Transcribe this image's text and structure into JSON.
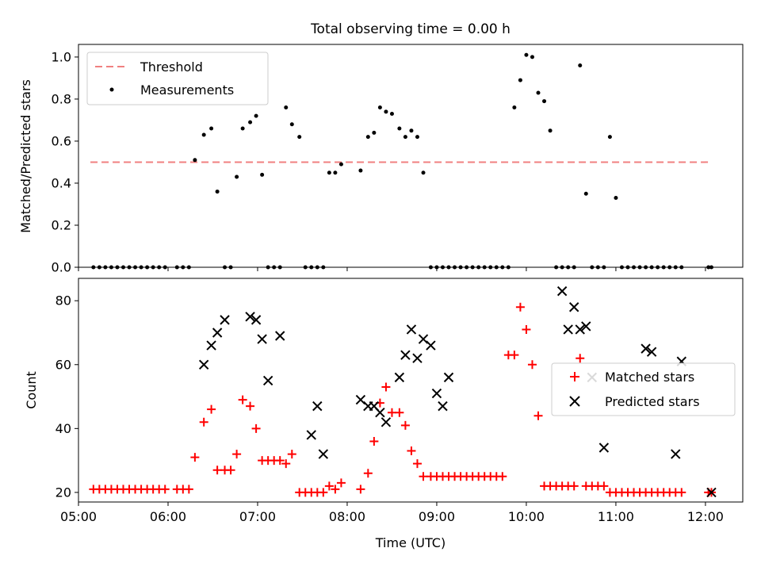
{
  "figure_title": "Total observing time = 0.00 h",
  "chart_data": [
    {
      "type": "scatter",
      "ylabel": "Matched/Predicted stars",
      "xlim": [
        "05:00",
        "12:25"
      ],
      "ylim": [
        0,
        1.06
      ],
      "yticks": [
        "0.0",
        "0.2",
        "0.4",
        "0.6",
        "0.8",
        "1.0"
      ],
      "grid": false,
      "legend_position": "top-left",
      "threshold": {
        "name": "Threshold",
        "value": 0.5,
        "x_start": "05:08",
        "x_end": "12:02",
        "color": "#f08080"
      },
      "series": [
        {
          "name": "Measurements",
          "color": "#000000",
          "x": [
            "05:10",
            "05:14",
            "05:18",
            "05:22",
            "05:26",
            "05:30",
            "05:34",
            "05:38",
            "05:42",
            "05:46",
            "05:50",
            "05:54",
            "05:58",
            "06:06",
            "06:10",
            "06:14",
            "06:18",
            "06:24",
            "06:29",
            "06:33",
            "06:38",
            "06:42",
            "06:46",
            "06:50",
            "06:55",
            "06:59",
            "07:03",
            "07:07",
            "07:11",
            "07:15",
            "07:19",
            "07:23",
            "07:28",
            "07:32",
            "07:36",
            "07:40",
            "07:44",
            "07:48",
            "07:52",
            "07:56",
            "08:09",
            "08:14",
            "08:18",
            "08:22",
            "08:26",
            "08:30",
            "08:35",
            "08:39",
            "08:43",
            "08:47",
            "08:51",
            "08:56",
            "09:00",
            "09:04",
            "09:08",
            "09:12",
            "09:16",
            "09:20",
            "09:24",
            "09:28",
            "09:32",
            "09:36",
            "09:40",
            "09:44",
            "09:48",
            "09:52",
            "09:56",
            "10:00",
            "10:04",
            "10:08",
            "10:12",
            "10:16",
            "10:20",
            "10:24",
            "10:28",
            "10:32",
            "10:36",
            "10:40",
            "10:44",
            "10:48",
            "10:52",
            "10:56",
            "11:00",
            "11:04",
            "11:08",
            "11:12",
            "11:16",
            "11:20",
            "11:24",
            "11:28",
            "11:32",
            "11:36",
            "11:40",
            "11:44",
            "12:02",
            "12:04"
          ],
          "y": [
            0,
            0,
            0,
            0,
            0,
            0,
            0,
            0,
            0,
            0,
            0,
            0,
            0,
            0,
            0,
            0,
            0.51,
            0.63,
            0.66,
            0.36,
            0,
            0,
            0.43,
            0.66,
            0.69,
            0.72,
            0.44,
            0,
            0,
            0,
            0.76,
            0.68,
            0.62,
            0,
            0,
            0,
            0,
            0.45,
            0.45,
            0.49,
            0.46,
            0.62,
            0.64,
            0.76,
            0.74,
            0.73,
            0.66,
            0.62,
            0.65,
            0.62,
            0.45,
            0,
            0,
            0,
            0,
            0,
            0,
            0,
            0,
            0,
            0,
            0,
            0,
            0,
            0,
            0.76,
            0.89,
            1.01,
            1.0,
            0.83,
            0.79,
            0.65,
            0,
            0,
            0,
            0,
            0.96,
            0.35,
            0,
            0,
            0,
            0.62,
            0.33,
            0,
            0,
            0,
            0,
            0,
            0,
            0,
            0,
            0,
            0,
            0,
            0,
            0
          ]
        }
      ]
    },
    {
      "type": "scatter",
      "xlabel": "Time (UTC)",
      "ylabel": "Count",
      "xlim": [
        "05:00",
        "12:25"
      ],
      "ylim": [
        17,
        87
      ],
      "xticks": [
        "05:00",
        "06:00",
        "07:00",
        "08:00",
        "09:00",
        "10:00",
        "11:00",
        "12:00"
      ],
      "yticks": [
        "20",
        "40",
        "60",
        "80"
      ],
      "grid": false,
      "legend_position": "center-right",
      "series": [
        {
          "name": "Matched stars",
          "marker": "plus",
          "color": "#ff0000",
          "x": [
            "05:10",
            "05:14",
            "05:18",
            "05:22",
            "05:26",
            "05:30",
            "05:34",
            "05:38",
            "05:42",
            "05:46",
            "05:50",
            "05:54",
            "05:58",
            "06:06",
            "06:10",
            "06:14",
            "06:18",
            "06:24",
            "06:29",
            "06:33",
            "06:38",
            "06:42",
            "06:46",
            "06:50",
            "06:55",
            "06:59",
            "07:03",
            "07:07",
            "07:11",
            "07:15",
            "07:19",
            "07:23",
            "07:28",
            "07:32",
            "07:36",
            "07:40",
            "07:44",
            "07:48",
            "07:52",
            "07:56",
            "08:09",
            "08:14",
            "08:18",
            "08:22",
            "08:26",
            "08:30",
            "08:35",
            "08:39",
            "08:43",
            "08:47",
            "08:51",
            "08:56",
            "09:00",
            "09:04",
            "09:08",
            "09:12",
            "09:16",
            "09:20",
            "09:24",
            "09:28",
            "09:32",
            "09:36",
            "09:40",
            "09:44",
            "09:48",
            "09:52",
            "09:56",
            "10:00",
            "10:04",
            "10:08",
            "10:12",
            "10:16",
            "10:20",
            "10:24",
            "10:28",
            "10:32",
            "10:36",
            "10:40",
            "10:44",
            "10:48",
            "10:52",
            "10:56",
            "11:00",
            "11:04",
            "11:08",
            "11:12",
            "11:16",
            "11:20",
            "11:24",
            "11:28",
            "11:32",
            "11:36",
            "11:40",
            "11:44",
            "12:02",
            "12:04"
          ],
          "y": [
            21,
            21,
            21,
            21,
            21,
            21,
            21,
            21,
            21,
            21,
            21,
            21,
            21,
            21,
            21,
            21,
            31,
            42,
            46,
            27,
            27,
            27,
            32,
            49,
            47,
            40,
            30,
            30,
            30,
            30,
            29,
            32,
            20,
            20,
            20,
            20,
            20,
            22,
            21,
            23,
            21,
            26,
            36,
            48,
            53,
            45,
            45,
            41,
            33,
            29,
            25,
            25,
            25,
            25,
            25,
            25,
            25,
            25,
            25,
            25,
            25,
            25,
            25,
            25,
            63,
            63,
            78,
            71,
            60,
            44,
            22,
            22,
            22,
            22,
            22,
            22,
            62,
            22,
            22,
            22,
            22,
            20,
            20,
            20,
            20,
            20,
            20,
            20,
            20,
            20,
            20,
            20,
            20,
            20,
            20,
            20
          ]
        },
        {
          "name": "Predicted stars",
          "marker": "x",
          "color": "#000000",
          "x": [
            "06:24",
            "06:29",
            "06:33",
            "06:38",
            "06:55",
            "06:59",
            "07:03",
            "07:07",
            "07:15",
            "07:36",
            "07:40",
            "07:44",
            "08:09",
            "08:14",
            "08:18",
            "08:22",
            "08:26",
            "08:35",
            "08:39",
            "08:43",
            "08:47",
            "08:51",
            "08:56",
            "09:00",
            "09:04",
            "09:08",
            "10:24",
            "10:28",
            "10:32",
            "10:36",
            "10:40",
            "10:44",
            "10:52",
            "11:20",
            "11:24",
            "11:40",
            "11:44",
            "12:04"
          ],
          "y": [
            60,
            66,
            70,
            74,
            75,
            74,
            68,
            55,
            69,
            38,
            47,
            32,
            49,
            47,
            47,
            45,
            42,
            56,
            63,
            71,
            62,
            68,
            66,
            51,
            47,
            56,
            83,
            71,
            78,
            71,
            72,
            56,
            34,
            65,
            64,
            32,
            61,
            20
          ]
        }
      ]
    }
  ]
}
